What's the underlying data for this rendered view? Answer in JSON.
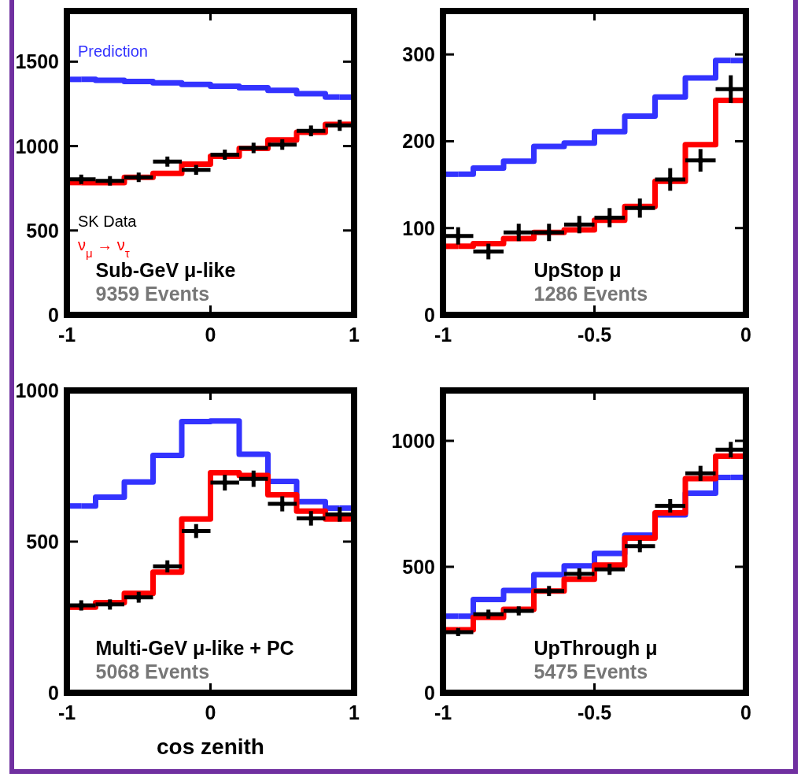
{
  "chart_data": [
    {
      "type": "step",
      "x": [
        -0.9,
        -0.7,
        -0.5,
        -0.3,
        -0.1,
        0.1,
        0.3,
        0.5,
        0.7,
        0.9
      ],
      "xlim": [
        -1,
        1
      ],
      "xticks": [
        -1,
        0,
        1
      ],
      "ylim": [
        0,
        1800
      ],
      "yticks": [
        0,
        500,
        1000,
        1500
      ],
      "legend": "left",
      "series": [
        {
          "name": "Prediction",
          "color": "#3333ff",
          "values": [
            1395,
            1390,
            1383,
            1375,
            1365,
            1355,
            1345,
            1330,
            1310,
            1290
          ]
        },
        {
          "name": "SK Data",
          "type": "scatter",
          "color": "#000000",
          "values": [
            803,
            794,
            815,
            908,
            859,
            949,
            989,
            1009,
            1090,
            1123
          ],
          "errors": [
            28,
            28,
            28,
            30,
            29,
            30,
            31,
            31,
            32,
            33
          ],
          "xerrors": [
            0.1,
            0.1,
            0.1,
            0.1,
            0.1,
            0.1,
            0.1,
            0.1,
            0.1,
            0.1
          ]
        },
        {
          "name": "ν$_{μ}$ → ν$_{τ}$",
          "color": "#ff0000",
          "values": [
            784,
            784,
            815,
            838,
            893,
            940,
            986,
            1036,
            1082,
            1129
          ]
        }
      ],
      "annotations": [
        "Sub-GeV μ-like",
        "9359 Events"
      ]
    },
    {
      "type": "step",
      "x": [
        -0.95,
        -0.85,
        -0.75,
        -0.65,
        -0.55,
        -0.45,
        -0.35,
        -0.25,
        -0.15,
        -0.05
      ],
      "xlim": [
        -1,
        0
      ],
      "xticks": [
        -1,
        -0.5,
        0
      ],
      "ylim": [
        0,
        350
      ],
      "yticks": [
        0,
        100,
        200,
        300
      ],
      "series": [
        {
          "color": "#3333ff",
          "values": [
            162,
            169,
            177,
            194,
            198,
            211,
            229,
            251,
            273,
            293
          ]
        },
        {
          "type": "scatter",
          "color": "#000000",
          "values": [
            91,
            73,
            95,
            95,
            104,
            112,
            123,
            156,
            178,
            260
          ],
          "errors": [
            10,
            9,
            10,
            10,
            10,
            11,
            11,
            13,
            13,
            16
          ],
          "xerrors": [
            0.05,
            0.05,
            0.05,
            0.05,
            0.05,
            0.05,
            0.05,
            0.05,
            0.05,
            0.05
          ]
        },
        {
          "color": "#ff0000",
          "values": [
            79,
            82,
            88,
            95,
            98,
            109,
            125,
            154,
            196,
            247
          ]
        }
      ],
      "annotations": [
        "UpStop μ",
        "1286 Events"
      ]
    },
    {
      "type": "step",
      "x": [
        -0.9,
        -0.7,
        -0.5,
        -0.3,
        -0.1,
        0.1,
        0.3,
        0.5,
        0.7,
        0.9
      ],
      "xlim": [
        -1,
        1
      ],
      "xticks": [
        -1,
        0,
        1
      ],
      "ylim": [
        0,
        1000
      ],
      "yticks": [
        0,
        500,
        1000
      ],
      "xlabel": "cos zenith",
      "series": [
        {
          "color": "#3333ff",
          "values": [
            618,
            647,
            697,
            785,
            897,
            899,
            789,
            699,
            632,
            611
          ]
        },
        {
          "type": "scatter",
          "color": "#000000",
          "values": [
            289,
            292,
            316,
            418,
            535,
            695,
            708,
            625,
            577,
            590
          ],
          "errors": [
            17,
            17,
            18,
            20,
            23,
            26,
            27,
            25,
            24,
            24
          ],
          "xerrors": [
            0.1,
            0.1,
            0.1,
            0.1,
            0.1,
            0.1,
            0.1,
            0.1,
            0.1,
            0.1
          ]
        },
        {
          "color": "#ff0000",
          "values": [
            283,
            298,
            329,
            399,
            575,
            728,
            719,
            655,
            601,
            575
          ]
        }
      ],
      "annotations": [
        "Multi-GeV μ-like + PC",
        "5068 Events"
      ]
    },
    {
      "type": "step",
      "x": [
        -0.95,
        -0.85,
        -0.75,
        -0.65,
        -0.55,
        -0.45,
        -0.35,
        -0.25,
        -0.15,
        -0.05
      ],
      "xlim": [
        -1,
        0
      ],
      "xticks": [
        -1,
        -0.5,
        0
      ],
      "ylim": [
        0,
        1200
      ],
      "yticks": [
        0,
        500,
        1000
      ],
      "series": [
        {
          "color": "#3333ff",
          "values": [
            304,
            370,
            406,
            469,
            504,
            553,
            626,
            706,
            792,
            855
          ]
        },
        {
          "type": "scatter",
          "color": "#000000",
          "values": [
            241,
            312,
            325,
            404,
            472,
            490,
            582,
            742,
            871,
            965
          ],
          "errors": [
            16,
            18,
            18,
            20,
            22,
            22,
            24,
            27,
            30,
            31
          ],
          "xerrors": [
            0.05,
            0.05,
            0.05,
            0.05,
            0.05,
            0.05,
            0.05,
            0.05,
            0.05,
            0.05
          ]
        },
        {
          "color": "#ff0000",
          "values": [
            250,
            299,
            331,
            404,
            451,
            507,
            614,
            714,
            850,
            939
          ]
        }
      ],
      "annotations": [
        "UpThrough μ",
        "5475 Events"
      ]
    }
  ]
}
